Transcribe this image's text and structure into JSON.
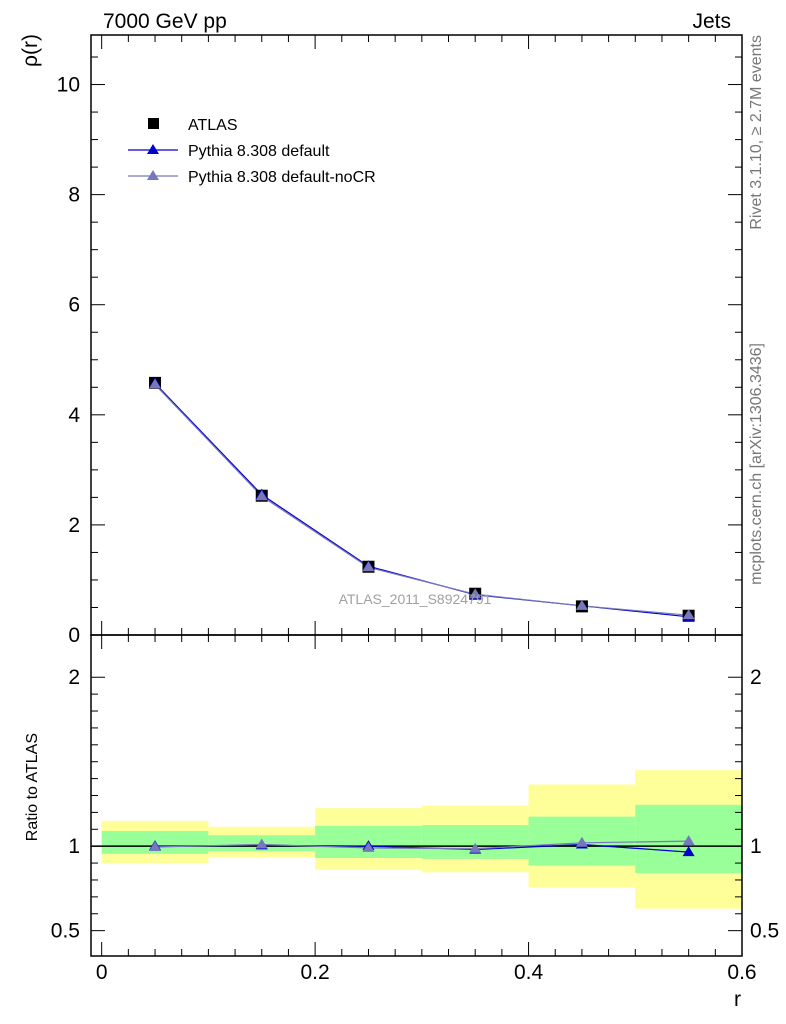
{
  "header": {
    "left": "7000 GeV pp",
    "right": "Jets"
  },
  "side_texts": {
    "rivet": "Rivet 3.1.10, ≥ 2.7M events",
    "mcplots": "mcplots.cern.ch [arXiv:1306.3436]"
  },
  "watermark": "ATLAS_2011_S8924791",
  "colors": {
    "data": "#000000",
    "default": "#0000cc",
    "nocr": "#7777bb",
    "band_inner": "#99ff99",
    "band_outer": "#ffff99"
  },
  "chart_data": [
    {
      "type": "line",
      "ylabel": "ρ(r)",
      "xlim": [
        -0.01,
        0.6
      ],
      "ylim": [
        0,
        10.9
      ],
      "yticks": [
        0,
        2,
        4,
        6,
        8,
        10
      ],
      "legend_placement": "top-left",
      "x": [
        0.05,
        0.15,
        0.25,
        0.35,
        0.45,
        0.55
      ],
      "series": [
        {
          "name": "ATLAS",
          "marker": "square",
          "values": [
            4.58,
            2.53,
            1.24,
            0.75,
            0.52,
            0.35
          ]
        },
        {
          "name": "Pythia 8.308 default",
          "marker": "triangle",
          "values": [
            4.57,
            2.55,
            1.25,
            0.73,
            0.53,
            0.33
          ]
        },
        {
          "name": "Pythia 8.308 default-noCR",
          "marker": "triangle",
          "values": [
            4.55,
            2.52,
            1.23,
            0.74,
            0.53,
            0.36
          ]
        }
      ]
    },
    {
      "type": "line",
      "xlabel": "r",
      "ylabel": "Ratio to ATLAS",
      "xlim": [
        -0.01,
        0.6
      ],
      "ylim": [
        0.35,
        2.25
      ],
      "yticks": [
        0.5,
        1,
        2
      ],
      "xticks": [
        0,
        0.2,
        0.4,
        0.6
      ],
      "bins": [
        [
          0.0,
          0.1
        ],
        [
          0.1,
          0.2
        ],
        [
          0.2,
          0.3
        ],
        [
          0.3,
          0.4
        ],
        [
          0.4,
          0.5
        ],
        [
          0.5,
          0.6
        ]
      ],
      "band_inner": [
        [
          0.955,
          1.09
        ],
        [
          0.97,
          1.065
        ],
        [
          0.93,
          1.12
        ],
        [
          0.925,
          1.125
        ],
        [
          0.885,
          1.175
        ],
        [
          0.84,
          1.245
        ]
      ],
      "band_outer": [
        [
          0.9,
          1.15
        ],
        [
          0.935,
          1.115
        ],
        [
          0.86,
          1.225
        ],
        [
          0.845,
          1.24
        ],
        [
          0.755,
          1.365
        ],
        [
          0.63,
          1.45
        ]
      ],
      "x": [
        0.05,
        0.15,
        0.25,
        0.35,
        0.45,
        0.55
      ],
      "series": [
        {
          "name": "Pythia 8.308 default",
          "values": [
            1.0,
            1.005,
            1.0,
            0.98,
            1.01,
            0.965
          ]
        },
        {
          "name": "Pythia 8.308 default-noCR",
          "values": [
            0.995,
            1.01,
            0.99,
            0.985,
            1.02,
            1.03
          ]
        }
      ]
    }
  ]
}
